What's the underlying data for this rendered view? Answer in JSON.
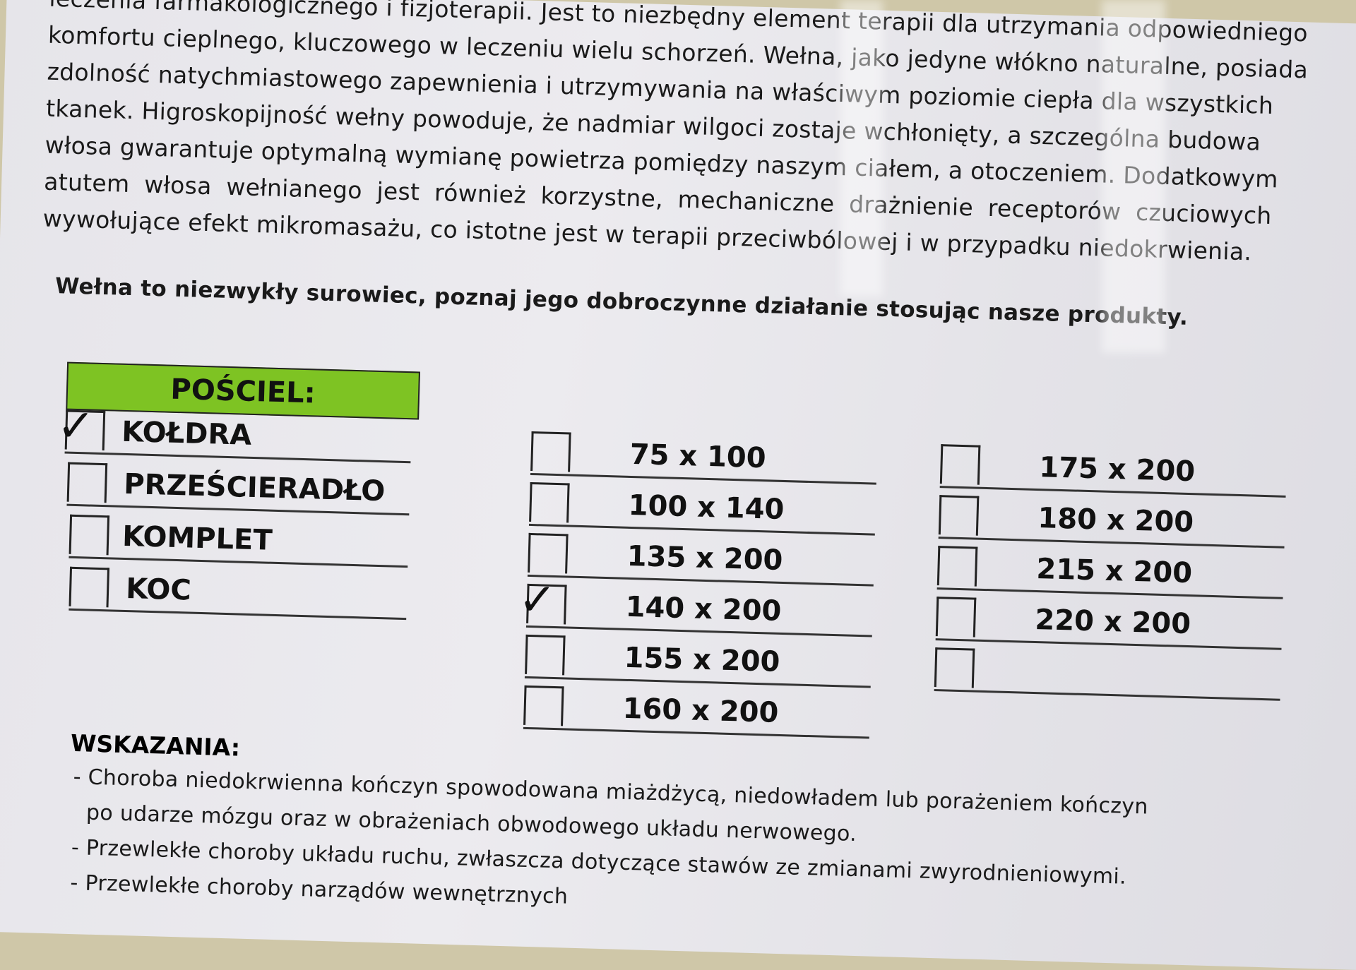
{
  "intro_lines": [
    "leczenia farmakologicznego i fizjoterapii. Jest to niezbędny element terapii dla utrzymania odpowiedniego",
    "komfortu cieplnego, kluczowego w leczeniu wielu schorzeń. Wełna, jako jedyne włókno naturalne, posiada",
    "zdolność natychmiastowego zapewnienia i utrzymywania na właściwym poziomie ciepła dla wszystkich",
    "tkanek. Higroskopijność wełny powoduje, że nadmiar wilgoci zostaje wchłonięty, a szczególna budowa",
    "włosa gwarantuje optymalną wymianę powietrza pomiędzy naszym ciałem, a otoczeniem. Dodatkowym",
    "atutem włosa wełnianego jest również korzystne, mechaniczne drażnienie receptorów czuciowych",
    "wywołujące efekt mikromasażu, co istotne jest w terapii przeciwbólowej i w przypadku niedokrwienia."
  ],
  "tagline": "Wełna to niezwykły surowiec, poznaj jego dobroczynne działanie stosując nasze produkty.",
  "category_header": "POŚCIEL:",
  "products": [
    {
      "label": "KOŁDRA",
      "checked": true
    },
    {
      "label": "PRZEŚCIERADŁO",
      "checked": false
    },
    {
      "label": "KOMPLET",
      "checked": false
    },
    {
      "label": "KOC",
      "checked": false
    }
  ],
  "sizes_col1": [
    {
      "label": "75 x 100",
      "checked": false
    },
    {
      "label": "100 x 140",
      "checked": false
    },
    {
      "label": "135 x 200",
      "checked": false
    },
    {
      "label": "140 x 200",
      "checked": true
    },
    {
      "label": "155 x 200",
      "checked": false
    },
    {
      "label": "160 x 200",
      "checked": false
    }
  ],
  "sizes_col2": [
    {
      "label": "175 x 200",
      "checked": false
    },
    {
      "label": "180 x 200",
      "checked": false
    },
    {
      "label": "215 x 200",
      "checked": false
    },
    {
      "label": "220 x 200",
      "checked": false
    },
    {
      "label": "",
      "checked": false
    }
  ],
  "indications_title": "WSKAZANIA:",
  "indications_lines": [
    "- Choroba niedokrwienna kończyn spowodowana miażdżycą, niedowładem lub porażeniem kończyn",
    "  po udarze mózgu oraz w obrażeniach obwodowego układu nerwowego.",
    "- Przewlekłe choroby układu ruchu, zwłaszcza dotyczące stawów ze zmianami zwyrodnieniowymi.",
    "- Przewlekłe choroby narządów wewnętrznych"
  ],
  "colors": {
    "header_green": "#7ec323",
    "paper": "#e8e7ec",
    "ink": "#1a1a1a"
  },
  "check_glyph": "✓"
}
